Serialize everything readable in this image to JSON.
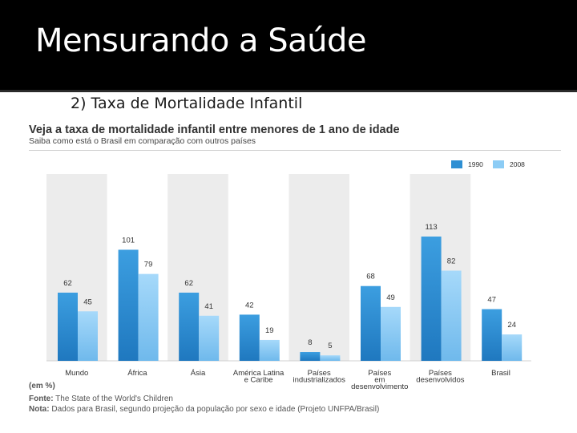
{
  "slide": {
    "title": "Mensurando a Saúde",
    "subtitle": "2) Taxa de Mortalidade Infantil"
  },
  "colors": {
    "header_bg": "#000000",
    "series_1990": "#2e8fd3",
    "series_2008": "#8cccf5",
    "band": "#ececec"
  },
  "chart_data": {
    "type": "bar",
    "title": "Veja a taxa de mortalidade infantil entre menores de 1 ano de idade",
    "subtitle": "Saiba como está o Brasil em comparação com outros países",
    "categories": [
      [
        "Mundo"
      ],
      [
        "África"
      ],
      [
        "Ásia"
      ],
      [
        "América Latina",
        "e Caribe"
      ],
      [
        "Países",
        "industrializados"
      ],
      [
        "Países",
        "em",
        "desenvolvimento"
      ],
      [
        "Países",
        "desenvolvidos"
      ],
      [
        "Brasil"
      ]
    ],
    "series": [
      {
        "name": "1990",
        "values": [
          62,
          101,
          62,
          42,
          8,
          68,
          113,
          47
        ]
      },
      {
        "name": "2008",
        "values": [
          45,
          79,
          41,
          19,
          5,
          49,
          82,
          24
        ]
      }
    ],
    "ylim": [
      0,
      125
    ],
    "unit_label": "(em %)",
    "legend_position": "top-right",
    "xlabel": "",
    "ylabel": ""
  },
  "footer": {
    "source_label": "Fonte:",
    "source_text": "The State of the World's Children",
    "note_label": "Nota:",
    "note_text": "Dados para Brasil, segundo projeção da população por sexo e idade (Projeto UNFPA/Brasil)"
  }
}
